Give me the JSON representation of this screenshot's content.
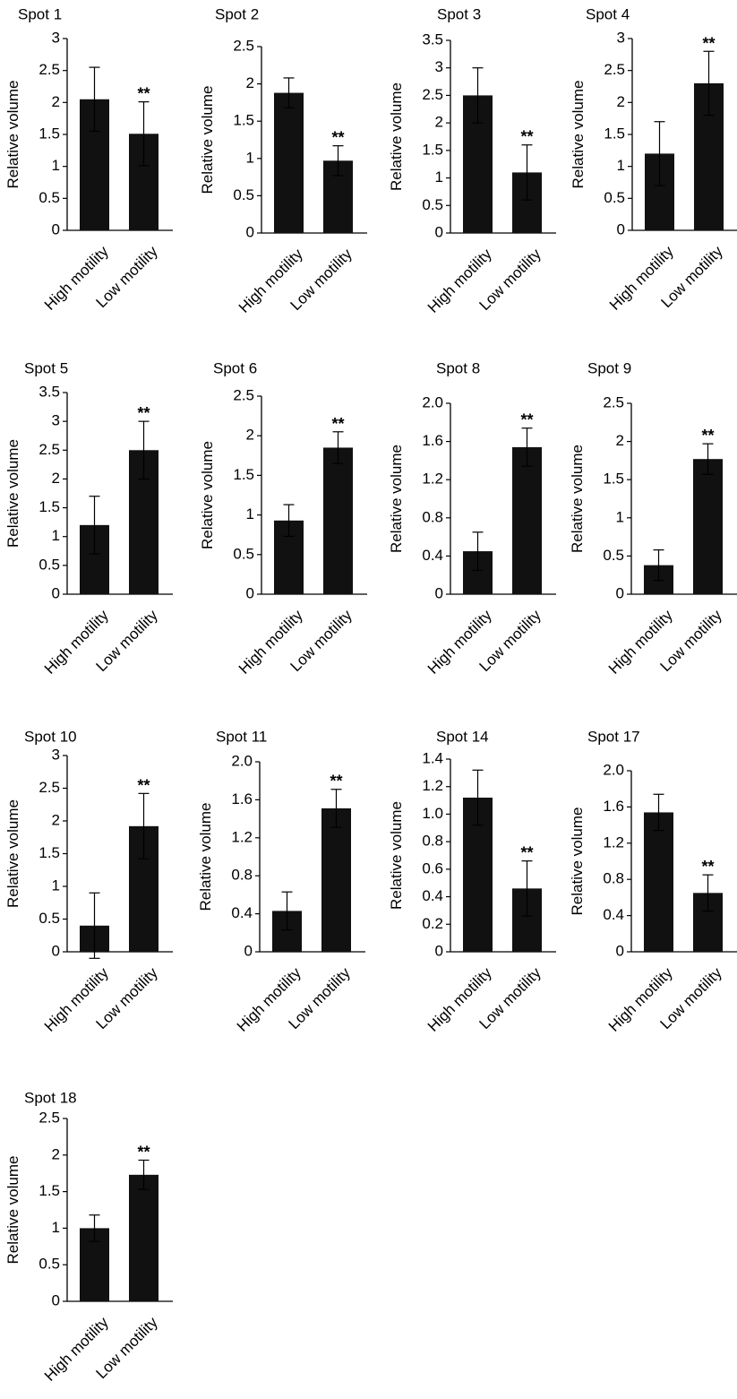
{
  "chart_data": [
    {
      "type": "bar",
      "title": "Spot 1",
      "ylabel": "Relative volume",
      "categories": [
        "High motility",
        "Low motility"
      ],
      "values": [
        2.05,
        1.51
      ],
      "errors": [
        0.5,
        0.5
      ],
      "significance": [
        "",
        "**"
      ],
      "ylim": [
        0,
        3
      ],
      "yticks": [
        "0",
        "0.5",
        "1",
        "1.5",
        "2",
        "2.5",
        "3"
      ]
    },
    {
      "type": "bar",
      "title": "Spot 2",
      "ylabel": "Relative volume",
      "categories": [
        "High motility",
        "Low motility"
      ],
      "values": [
        1.88,
        0.97
      ],
      "errors": [
        0.2,
        0.2
      ],
      "significance": [
        "",
        "**"
      ],
      "ylim": [
        0,
        2.5
      ],
      "yticks": [
        "0",
        "0.5",
        "1",
        "1.5",
        "2",
        "2.5"
      ]
    },
    {
      "type": "bar",
      "title": "Spot 3",
      "ylabel": "Relative volume",
      "categories": [
        "High motility",
        "Low motility"
      ],
      "values": [
        2.5,
        1.1
      ],
      "errors": [
        0.5,
        0.5
      ],
      "significance": [
        "",
        "**"
      ],
      "ylim": [
        0,
        3.5
      ],
      "yticks": [
        "0",
        "0.5",
        "1",
        "1.5",
        "2",
        "2.5",
        "3",
        "3.5"
      ]
    },
    {
      "type": "bar",
      "title": "Spot 4",
      "ylabel": "Relative volume",
      "categories": [
        "High motility",
        "Low motility"
      ],
      "values": [
        1.2,
        2.3
      ],
      "errors": [
        0.5,
        0.5
      ],
      "significance": [
        "",
        "**"
      ],
      "ylim": [
        0,
        3
      ],
      "yticks": [
        "0",
        "0.5",
        "1",
        "1.5",
        "2",
        "2.5",
        "3"
      ]
    },
    {
      "type": "bar",
      "title": "Spot 5",
      "ylabel": "Relative volume",
      "categories": [
        "High motility",
        "Low motility"
      ],
      "values": [
        1.2,
        2.5
      ],
      "errors": [
        0.5,
        0.5
      ],
      "significance": [
        "",
        "**"
      ],
      "ylim": [
        0,
        3.5
      ],
      "yticks": [
        "0",
        "0.5",
        "1",
        "1.5",
        "2",
        "2.5",
        "3",
        "3.5"
      ]
    },
    {
      "type": "bar",
      "title": "Spot 6",
      "ylabel": "Relative volume",
      "categories": [
        "High motility",
        "Low motility"
      ],
      "values": [
        0.93,
        1.85
      ],
      "errors": [
        0.2,
        0.2
      ],
      "significance": [
        "",
        "**"
      ],
      "ylim": [
        0,
        2.5
      ],
      "yticks": [
        "0",
        "0.5",
        "1",
        "1.5",
        "2",
        "2.5"
      ]
    },
    {
      "type": "bar",
      "title": "Spot 8",
      "ylabel": "Relative volume",
      "categories": [
        "High motility",
        "Low motility"
      ],
      "values": [
        0.45,
        1.54
      ],
      "errors": [
        0.2,
        0.2
      ],
      "significance": [
        "",
        "**"
      ],
      "ylim": [
        0,
        2.0
      ],
      "yticks": [
        "0",
        "0.4",
        "0.8",
        "1.2",
        "1.6",
        "2.0"
      ]
    },
    {
      "type": "bar",
      "title": "Spot 9",
      "ylabel": "Relative volume",
      "categories": [
        "High motility",
        "Low motility"
      ],
      "values": [
        0.38,
        1.77
      ],
      "errors": [
        0.2,
        0.2
      ],
      "significance": [
        "",
        "**"
      ],
      "ylim": [
        0,
        2.5
      ],
      "yticks": [
        "0",
        "0.5",
        "1",
        "1.5",
        "2",
        "2.5"
      ]
    },
    {
      "type": "bar",
      "title": "Spot 10",
      "ylabel": "Relative volume",
      "categories": [
        "High motility",
        "Low motility"
      ],
      "values": [
        0.4,
        1.92
      ],
      "errors": [
        0.5,
        0.5
      ],
      "significance": [
        "",
        "**"
      ],
      "ylim": [
        0,
        3
      ],
      "yticks": [
        "0",
        "0.5",
        "1",
        "1.5",
        "2",
        "2.5",
        "3"
      ]
    },
    {
      "type": "bar",
      "title": "Spot 11",
      "ylabel": "Relative volume",
      "categories": [
        "High motility",
        "Low motility"
      ],
      "values": [
        0.43,
        1.51
      ],
      "errors": [
        0.2,
        0.2
      ],
      "significance": [
        "",
        "**"
      ],
      "ylim": [
        0,
        2.0
      ],
      "yticks": [
        "0",
        "0.4",
        "0.8",
        "1.2",
        "1.6",
        "2.0"
      ]
    },
    {
      "type": "bar",
      "title": "Spot 14",
      "ylabel": "Relative volume",
      "categories": [
        "High motility",
        "Low motility"
      ],
      "values": [
        1.12,
        0.46
      ],
      "errors": [
        0.2,
        0.2
      ],
      "significance": [
        "",
        "**"
      ],
      "ylim": [
        0,
        1.4
      ],
      "yticks": [
        "0",
        "0.2",
        "0.4",
        "0.6",
        "0.8",
        "1.0",
        "1.2",
        "1.4"
      ]
    },
    {
      "type": "bar",
      "title": "Spot 17",
      "ylabel": "Relative volume",
      "categories": [
        "High motility",
        "Low motility"
      ],
      "values": [
        1.54,
        0.65
      ],
      "errors": [
        0.2,
        0.2
      ],
      "significance": [
        "",
        "**"
      ],
      "ylim": [
        0,
        2.0
      ],
      "yticks": [
        "0",
        "0.4",
        "0.8",
        "1.2",
        "1.6",
        "2.0"
      ]
    },
    {
      "type": "bar",
      "title": "Spot 18",
      "ylabel": "Relative volume",
      "categories": [
        "High motility",
        "Low motility"
      ],
      "values": [
        1.0,
        1.73
      ],
      "errors": [
        0.18,
        0.2
      ],
      "significance": [
        "",
        "**"
      ],
      "ylim": [
        0,
        2.5
      ],
      "yticks": [
        "0",
        "0.5",
        "1",
        "1.5",
        "2",
        "2.5"
      ]
    }
  ],
  "colors": {
    "bar": "#111111",
    "axis": "#000000",
    "background": "#ffffff"
  }
}
